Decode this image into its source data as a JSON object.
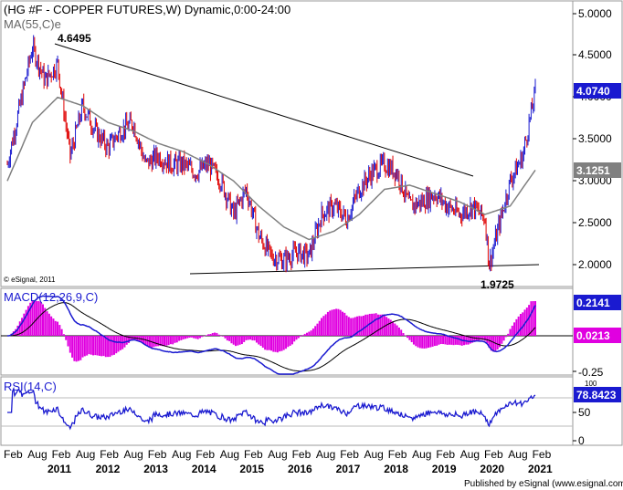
{
  "price_panel": {
    "title": "(HG #F - COPPER FUTURES,W) Dynamic,0:00-24:00",
    "ma_label": "MA(55,C)e",
    "credit": "© eSignal, 2011",
    "high_label": "4.6495",
    "low_label": "1.9725",
    "last_tag": "4.0740",
    "ma_tag": "3.1251",
    "y_ticks": [
      "5.0000",
      "4.5000",
      "4.0000",
      "3.5000",
      "3.0000",
      "2.5000",
      "2.0000"
    ]
  },
  "macd_panel": {
    "title": "MACD(12,26,9,C)",
    "macd_tag": "0.2141",
    "hist_tag": "0.0213",
    "y_ticks": [
      "-0.25"
    ]
  },
  "rsi_panel": {
    "title": "RSI(14,C)",
    "rsi_tag": "78.8423",
    "y_ticks": [
      "50",
      "0"
    ],
    "top_tick": "100"
  },
  "x_axis": {
    "months": [
      "Feb",
      "Aug",
      "Feb",
      "Aug",
      "Feb",
      "Aug",
      "Feb",
      "Aug",
      "Feb",
      "Aug",
      "Feb",
      "Aug",
      "Feb",
      "Aug",
      "Feb",
      "Aug",
      "Feb",
      "Aug",
      "Feb",
      "Aug",
      "Feb",
      "Aug",
      "Feb"
    ],
    "years": [
      "2011",
      "2012",
      "2013",
      "2014",
      "2015",
      "2016",
      "2017",
      "2018",
      "2019",
      "2020",
      "2021"
    ]
  },
  "footer": {
    "published": "Published by eSignal (www.esignal.com)"
  },
  "colors": {
    "price_up": "#1a1ad0",
    "price_down": "#e00000",
    "ma": "#808080",
    "macd": "#1a1ad0",
    "signal": "#000000",
    "histogram": "#e000e0",
    "rsi": "#1a1ad0",
    "tag_blue": "#1a1ad0",
    "tag_gray": "#808080"
  },
  "chart_data": {
    "type": "line",
    "title": "(HG #F - COPPER FUTURES,W) Dynamic,0:00-24:00",
    "y_range": [
      1.8,
      5.1
    ],
    "x_range": [
      "2010-08",
      "2021-02"
    ],
    "series": [
      {
        "name": "HG #F",
        "x": [
          "2010-08",
          "2010-11",
          "2011-02",
          "2011-05",
          "2011-08",
          "2011-11",
          "2012-02",
          "2012-05",
          "2012-08",
          "2012-11",
          "2013-02",
          "2013-05",
          "2013-08",
          "2013-11",
          "2014-02",
          "2014-05",
          "2014-08",
          "2014-11",
          "2015-02",
          "2015-05",
          "2015-08",
          "2015-11",
          "2016-02",
          "2016-05",
          "2016-08",
          "2016-11",
          "2017-02",
          "2017-05",
          "2017-08",
          "2017-11",
          "2018-02",
          "2018-05",
          "2018-08",
          "2018-11",
          "2019-02",
          "2019-05",
          "2019-08",
          "2019-11",
          "2020-02",
          "2020-03",
          "2020-05",
          "2020-08",
          "2020-11",
          "2021-02"
        ],
        "values": [
          3.2,
          3.9,
          4.6,
          4.2,
          4.4,
          3.3,
          3.9,
          3.6,
          3.4,
          3.6,
          3.7,
          3.2,
          3.3,
          3.2,
          3.2,
          3.1,
          3.2,
          3.0,
          2.6,
          2.9,
          2.35,
          2.1,
          2.05,
          2.15,
          2.1,
          2.6,
          2.7,
          2.55,
          2.9,
          3.1,
          3.2,
          3.1,
          2.7,
          2.75,
          2.85,
          2.7,
          2.6,
          2.7,
          2.55,
          2.0,
          2.4,
          3.0,
          3.3,
          4.07
        ]
      },
      {
        "name": "MA(55,C)e",
        "x": [
          "2010-08",
          "2011-02",
          "2011-08",
          "2012-02",
          "2012-08",
          "2013-02",
          "2013-08",
          "2014-02",
          "2014-08",
          "2015-02",
          "2015-08",
          "2016-02",
          "2016-08",
          "2017-02",
          "2017-08",
          "2018-02",
          "2018-08",
          "2019-02",
          "2019-08",
          "2020-02",
          "2020-08",
          "2021-02"
        ],
        "values": [
          3.0,
          3.7,
          4.0,
          3.9,
          3.7,
          3.6,
          3.45,
          3.35,
          3.2,
          3.0,
          2.7,
          2.45,
          2.3,
          2.4,
          2.6,
          2.9,
          2.95,
          2.85,
          2.75,
          2.6,
          2.7,
          3.13
        ]
      }
    ],
    "annotations": [
      "4.6495",
      "1.9725"
    ],
    "trendlines": [
      "descending resistance from 2011 high",
      "flat support near 2.0"
    ]
  }
}
